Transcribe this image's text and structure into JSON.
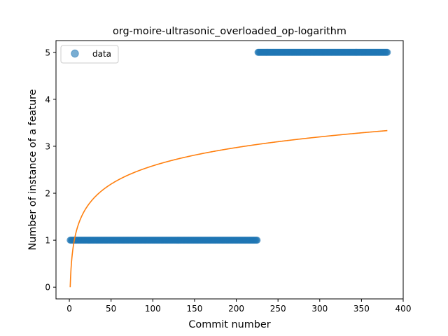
{
  "chart_data": {
    "type": "scatter",
    "title": "org-moire-ultrasonic_overloaded_op-logarithm",
    "xlabel": "Commit number",
    "ylabel": "Number of instance of a feature",
    "xlim": [
      -16,
      400
    ],
    "ylim": [
      -0.25,
      5.25
    ],
    "xticks": [
      0,
      50,
      100,
      150,
      200,
      250,
      300,
      350,
      400
    ],
    "yticks": [
      0,
      1,
      2,
      3,
      4,
      5
    ],
    "legend_position": "upper-left",
    "grid": false,
    "series": [
      {
        "name": "data",
        "kind": "scatter",
        "color": "#1f77b4",
        "segments": [
          {
            "x_start": 1,
            "x_end": 225,
            "y": 1
          },
          {
            "x_start": 226,
            "x_end": 381,
            "y": 5
          }
        ]
      },
      {
        "kind": "line",
        "color": "#ff7f0e",
        "function": "y = 0.561 * ln(x)",
        "x_range": [
          1,
          381
        ],
        "coefficient": 0.561
      }
    ]
  }
}
